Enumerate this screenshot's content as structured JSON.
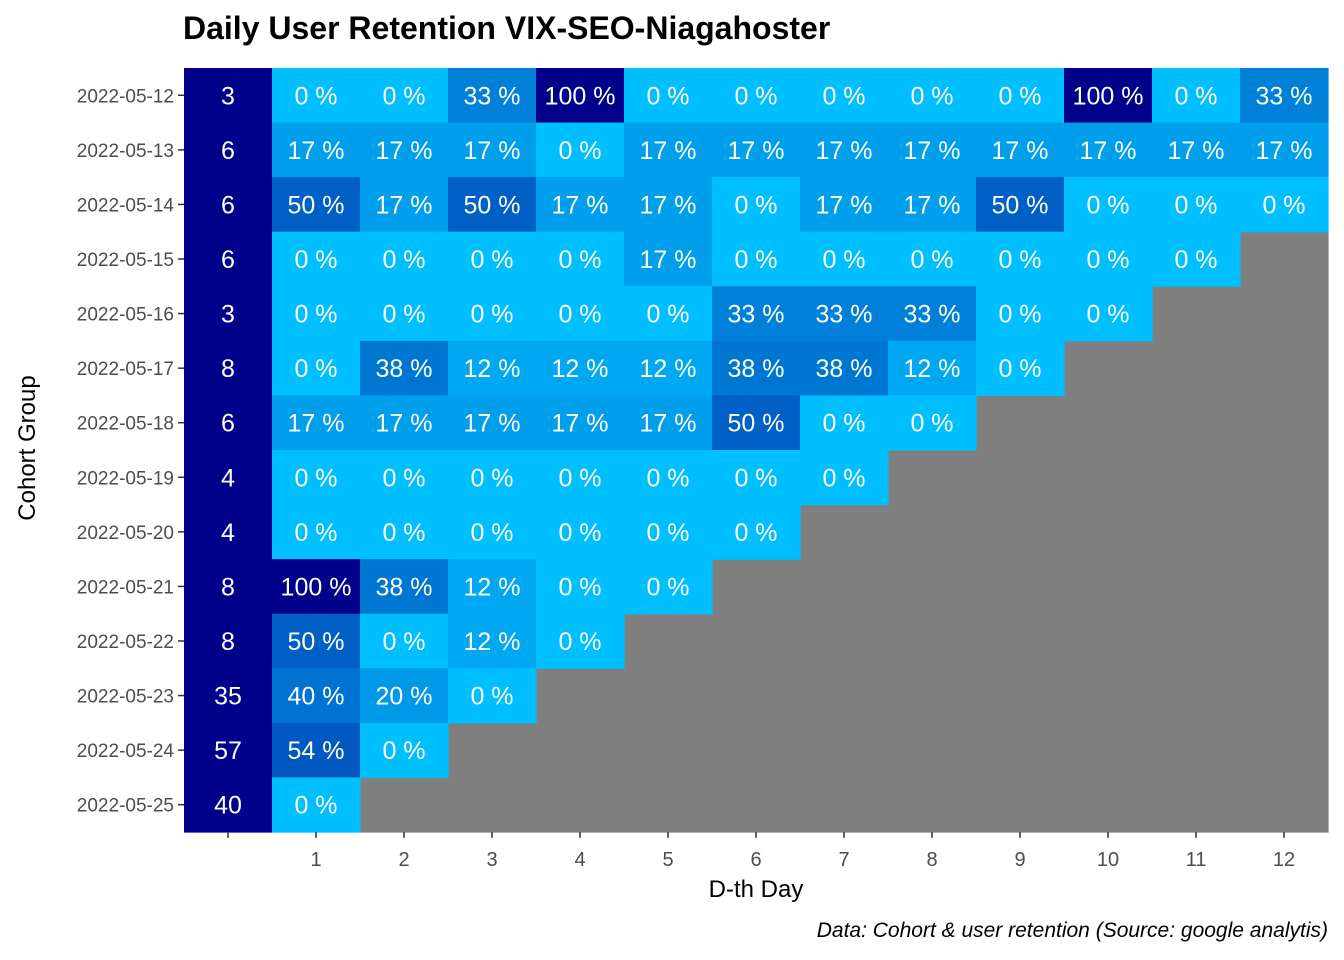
{
  "chart_data": {
    "type": "heatmap",
    "title": "Daily User Retention VIX-SEO-Niagahoster",
    "xlabel": "D-th Day",
    "ylabel": "Cohort Group",
    "caption": "Data: Cohort & user retention (Source: google analytis)",
    "x_ticks": [
      "1",
      "2",
      "3",
      "4",
      "5",
      "6",
      "7",
      "8",
      "9",
      "10",
      "11",
      "12"
    ],
    "rows": [
      {
        "cohort": "2022-05-12",
        "size": 3,
        "retention": [
          0,
          0,
          33,
          100,
          0,
          0,
          0,
          0,
          0,
          100,
          0,
          33
        ]
      },
      {
        "cohort": "2022-05-13",
        "size": 6,
        "retention": [
          17,
          17,
          17,
          0,
          17,
          17,
          17,
          17,
          17,
          17,
          17,
          17
        ]
      },
      {
        "cohort": "2022-05-14",
        "size": 6,
        "retention": [
          50,
          17,
          50,
          17,
          17,
          0,
          17,
          17,
          50,
          0,
          0,
          0
        ]
      },
      {
        "cohort": "2022-05-15",
        "size": 6,
        "retention": [
          0,
          0,
          0,
          0,
          17,
          0,
          0,
          0,
          0,
          0,
          0
        ]
      },
      {
        "cohort": "2022-05-16",
        "size": 3,
        "retention": [
          0,
          0,
          0,
          0,
          0,
          33,
          33,
          33,
          0,
          0
        ]
      },
      {
        "cohort": "2022-05-17",
        "size": 8,
        "retention": [
          0,
          38,
          12,
          12,
          12,
          38,
          38,
          12,
          0
        ]
      },
      {
        "cohort": "2022-05-18",
        "size": 6,
        "retention": [
          17,
          17,
          17,
          17,
          17,
          50,
          0,
          0
        ]
      },
      {
        "cohort": "2022-05-19",
        "size": 4,
        "retention": [
          0,
          0,
          0,
          0,
          0,
          0,
          0
        ]
      },
      {
        "cohort": "2022-05-20",
        "size": 4,
        "retention": [
          0,
          0,
          0,
          0,
          0,
          0
        ]
      },
      {
        "cohort": "2022-05-21",
        "size": 8,
        "retention": [
          100,
          38,
          12,
          0,
          0
        ]
      },
      {
        "cohort": "2022-05-22",
        "size": 8,
        "retention": [
          50,
          0,
          12,
          0
        ]
      },
      {
        "cohort": "2022-05-23",
        "size": 35,
        "retention": [
          40,
          20,
          0
        ]
      },
      {
        "cohort": "2022-05-24",
        "size": 57,
        "retention": [
          54,
          0
        ]
      },
      {
        "cohort": "2022-05-25",
        "size": 40,
        "retention": [
          0
        ]
      }
    ],
    "value_suffix": " %",
    "colors": {
      "low": "#00BFFF",
      "high": "#00008B",
      "cohort_size_fill": "#00008B",
      "missing": "#7F7F7F",
      "panel": "#EBEBEB",
      "cell_text": "#FFFFFF",
      "tick_text": "#4D4D4D"
    }
  }
}
